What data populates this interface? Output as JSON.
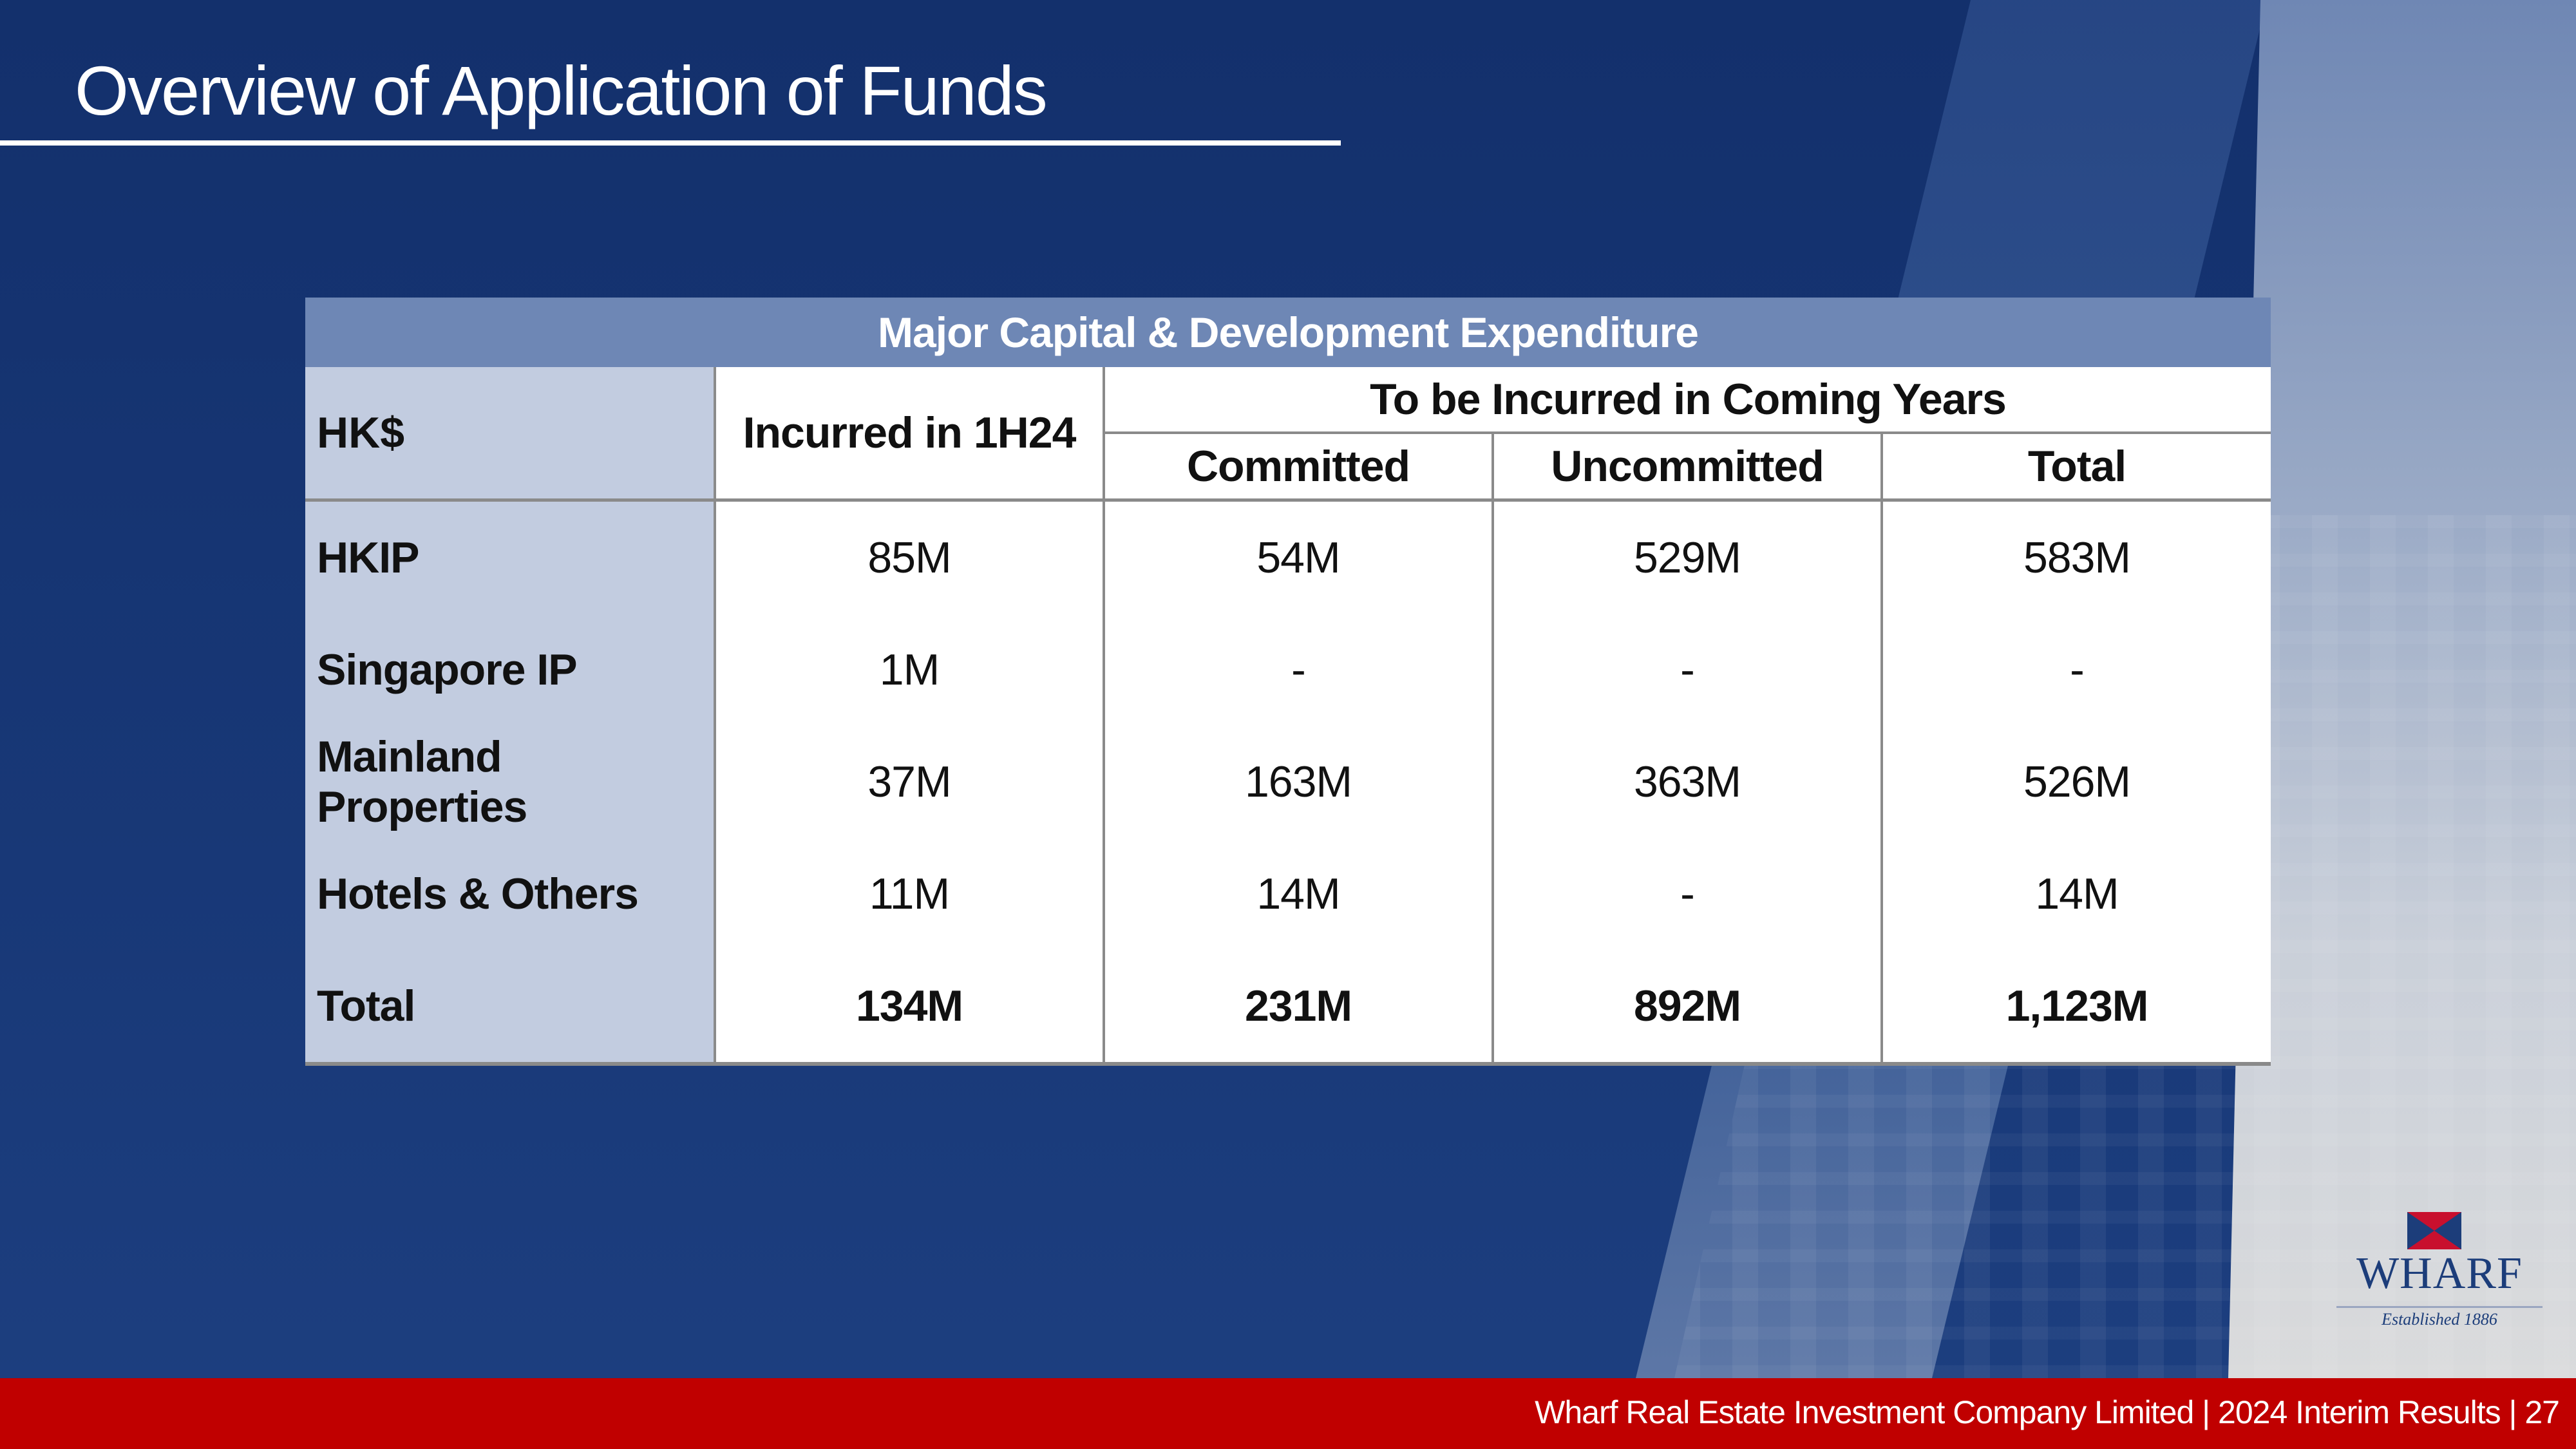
{
  "slide": {
    "title": "Overview of Application of Funds"
  },
  "table": {
    "caption": "Major Capital & Development Expenditure",
    "currency_label": "HK$",
    "incurred_header": "Incurred in 1H24",
    "group_header": "To be Incurred in Coming Years",
    "sub_headers": [
      "Committed",
      "Uncommitted",
      "Total"
    ],
    "rows": [
      {
        "label": "HKIP",
        "incurred": "85M",
        "committed": "54M",
        "uncommitted": "529M",
        "total": "583M"
      },
      {
        "label": "Singapore IP",
        "incurred": "1M",
        "committed": "-",
        "uncommitted": "-",
        "total": "-"
      },
      {
        "label": "Mainland Properties",
        "incurred": "37M",
        "committed": "163M",
        "uncommitted": "363M",
        "total": "526M"
      },
      {
        "label": "Hotels & Others",
        "incurred": "11M",
        "committed": "14M",
        "uncommitted": "-",
        "total": "14M"
      },
      {
        "label": "Total",
        "incurred": "134M",
        "committed": "231M",
        "uncommitted": "892M",
        "total": "1,123M"
      }
    ]
  },
  "logo": {
    "name": "WHARF",
    "tagline": "Established 1886"
  },
  "footer": {
    "text": "Wharf Real Estate Investment Company Limited | 2024 Interim Results |  27"
  },
  "colors": {
    "background": "#13306b",
    "table_header": "#6e87b5",
    "label_column": "#c2cce0",
    "footer": "#c00000",
    "logo_blue": "#1c3d7a",
    "logo_red": "#c8102e"
  }
}
